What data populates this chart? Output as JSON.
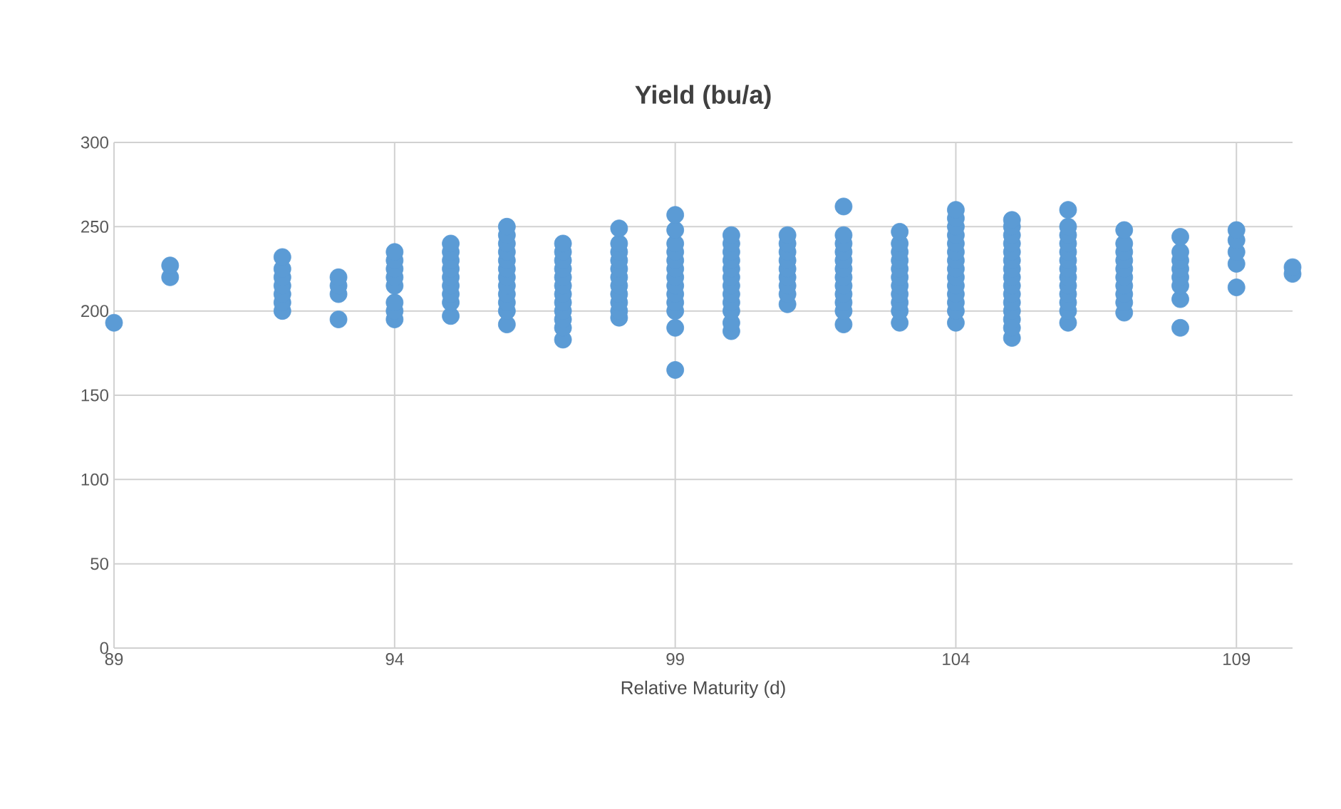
{
  "chart_data": {
    "type": "scatter",
    "title": "Yield (bu/a)",
    "xlabel": "Relative Maturity (d)",
    "xlim": [
      89,
      110
    ],
    "xticks": [
      89,
      94,
      99,
      104,
      109
    ],
    "ylim": [
      0,
      300
    ],
    "yticks": [
      0,
      50,
      100,
      150,
      200,
      250,
      300
    ],
    "grid": true,
    "marker": "circle",
    "legend": false,
    "series": [
      {
        "color": "#5b9bd5",
        "x": [
          89,
          90,
          90,
          92,
          92,
          92,
          92,
          92,
          92,
          92,
          93,
          93,
          93,
          93,
          94,
          94,
          94,
          94,
          94,
          94,
          94,
          94,
          95,
          95,
          95,
          95,
          95,
          95,
          95,
          95,
          95,
          96,
          96,
          96,
          96,
          96,
          96,
          96,
          96,
          96,
          96,
          96,
          96,
          97,
          97,
          97,
          97,
          97,
          97,
          97,
          97,
          97,
          97,
          97,
          97,
          98,
          98,
          98,
          98,
          98,
          98,
          98,
          98,
          98,
          98,
          98,
          99,
          99,
          99,
          99,
          99,
          99,
          99,
          99,
          99,
          99,
          99,
          99,
          99,
          100,
          100,
          100,
          100,
          100,
          100,
          100,
          100,
          100,
          100,
          100,
          100,
          101,
          101,
          101,
          101,
          101,
          101,
          101,
          101,
          101,
          102,
          102,
          102,
          102,
          102,
          102,
          102,
          102,
          102,
          102,
          102,
          102,
          103,
          103,
          103,
          103,
          103,
          103,
          103,
          103,
          103,
          103,
          103,
          104,
          104,
          104,
          104,
          104,
          104,
          104,
          104,
          104,
          104,
          104,
          104,
          104,
          104,
          105,
          105,
          105,
          105,
          105,
          105,
          105,
          105,
          105,
          105,
          105,
          105,
          105,
          105,
          105,
          106,
          106,
          106,
          106,
          106,
          106,
          106,
          106,
          106,
          106,
          106,
          106,
          106,
          107,
          107,
          107,
          107,
          107,
          107,
          107,
          107,
          107,
          107,
          108,
          108,
          108,
          108,
          108,
          108,
          108,
          108,
          109,
          109,
          109,
          109,
          109,
          110,
          110
        ],
        "values": [
          193,
          220,
          227,
          200,
          205,
          210,
          215,
          220,
          225,
          232,
          195,
          210,
          215,
          220,
          195,
          200,
          205,
          215,
          220,
          225,
          230,
          235,
          197,
          205,
          210,
          215,
          220,
          225,
          230,
          235,
          240,
          192,
          200,
          205,
          210,
          215,
          220,
          225,
          230,
          235,
          240,
          245,
          250,
          183,
          190,
          195,
          200,
          205,
          210,
          215,
          220,
          225,
          230,
          235,
          240,
          196,
          200,
          205,
          210,
          215,
          220,
          225,
          230,
          235,
          240,
          249,
          165,
          190,
          200,
          205,
          210,
          215,
          220,
          225,
          230,
          235,
          240,
          248,
          257,
          188,
          193,
          200,
          205,
          210,
          215,
          220,
          225,
          230,
          235,
          240,
          245,
          204,
          210,
          215,
          220,
          225,
          230,
          235,
          240,
          245,
          192,
          200,
          205,
          210,
          215,
          220,
          225,
          230,
          235,
          240,
          245,
          262,
          193,
          200,
          205,
          210,
          215,
          220,
          225,
          230,
          235,
          240,
          247,
          193,
          200,
          205,
          210,
          215,
          220,
          225,
          230,
          235,
          240,
          245,
          250,
          255,
          260,
          184,
          190,
          195,
          200,
          205,
          210,
          215,
          220,
          225,
          230,
          235,
          240,
          245,
          250,
          254,
          193,
          200,
          205,
          210,
          215,
          220,
          225,
          230,
          235,
          240,
          245,
          250,
          260,
          199,
          205,
          210,
          215,
          220,
          225,
          230,
          235,
          240,
          248,
          190,
          207,
          215,
          220,
          225,
          230,
          235,
          244,
          214,
          228,
          235,
          242,
          248,
          222,
          226
        ]
      }
    ]
  }
}
